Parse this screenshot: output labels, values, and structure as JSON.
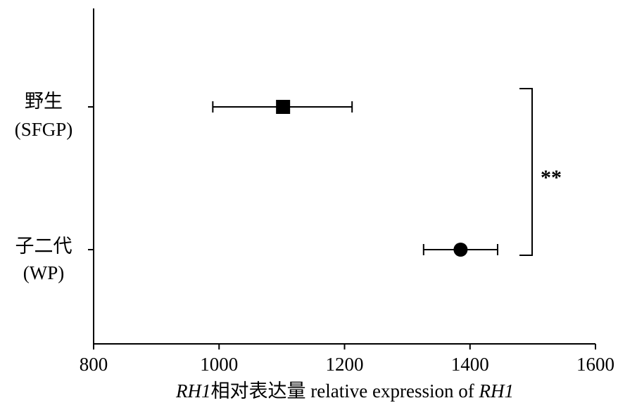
{
  "chart_data": {
    "type": "scatter",
    "subtype": "dot-plot-with-horizontal-error-bars",
    "categories": [
      {
        "name_cn": "野生",
        "name_en": "(SFGP)"
      },
      {
        "name_cn": "子二代",
        "name_en": "(WP)"
      }
    ],
    "series": [
      {
        "marker": "square",
        "value": 1102,
        "err_low": 990,
        "err_high": 1212
      },
      {
        "marker": "circle",
        "value": 1385,
        "err_low": 1326,
        "err_high": 1444
      }
    ],
    "xlabel": {
      "gene1": "RH1",
      "cn": "相对表达量",
      "en": " relative expression of ",
      "gene2": "RH1"
    },
    "xlim": [
      800,
      1600
    ],
    "xticks": [
      "800",
      "1000",
      "1200",
      "1400",
      "1600"
    ],
    "significance": "**",
    "grid": false,
    "legend": "none",
    "colors": {
      "marker": "#000000",
      "axis": "#000000",
      "background": "#ffffff"
    }
  }
}
